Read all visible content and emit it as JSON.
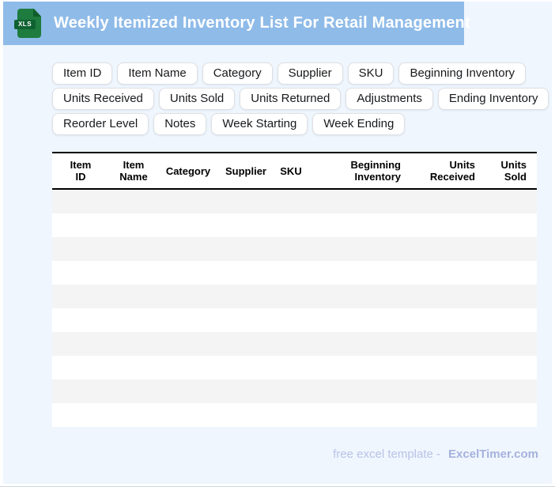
{
  "header": {
    "title": "Weekly Itemized Inventory List For Retail Management",
    "file_badge": "XLS",
    "bar_color": "#8fbbe8",
    "icon_color": "#1e7c3e"
  },
  "page": {
    "background_color": "#eff6fe"
  },
  "chips": {
    "rows": [
      [
        "Item ID",
        "Item Name",
        "Category",
        "Supplier",
        "SKU",
        "Beginning Inventory"
      ],
      [
        "Units Received",
        "Units Sold",
        "Units Returned",
        "Adjustments",
        "Ending Inventory"
      ],
      [
        "Reorder Level",
        "Notes",
        "Week Starting",
        "Week Ending"
      ]
    ]
  },
  "table": {
    "columns": [
      {
        "label": "Item ID",
        "lines": [
          "Item",
          "ID"
        ],
        "align": "center"
      },
      {
        "label": "Item Name",
        "lines": [
          "Item",
          "Name"
        ],
        "align": "center"
      },
      {
        "label": "Category",
        "lines": [
          "Category"
        ],
        "align": "center"
      },
      {
        "label": "Supplier",
        "lines": [
          "Supplier"
        ],
        "align": "center"
      },
      {
        "label": "SKU",
        "lines": [
          "SKU"
        ],
        "align": "center"
      },
      {
        "label": "Beginning Inventory",
        "lines": [
          "Beginning",
          "Inventory"
        ],
        "align": "right"
      },
      {
        "label": "Units Received",
        "lines": [
          "Units",
          "Received"
        ],
        "align": "right"
      },
      {
        "label": "Units Sold",
        "lines": [
          "Units",
          "Sold"
        ],
        "align": "right"
      }
    ],
    "empty_row_count": 10,
    "stripe_color": "#f4f4f4"
  },
  "footer": {
    "text": "free excel template -",
    "brand": "ExcelTimer.com"
  }
}
